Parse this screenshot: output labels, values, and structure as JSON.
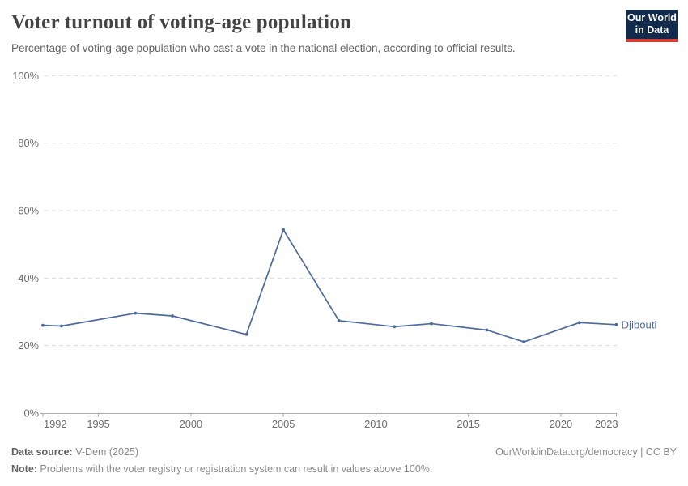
{
  "header": {
    "title": "Voter turnout of voting-age population",
    "subtitle": "Percentage of voting-age population who cast a vote in the national election, according to official results.",
    "logo": {
      "line1": "Our World",
      "line2": "in Data",
      "bg_color": "#122b4d",
      "stripe_color": "#d93d33"
    }
  },
  "chart_data": {
    "type": "line",
    "title": "Voter turnout of voting-age population",
    "xlabel": "",
    "ylabel": "",
    "xlim": [
      1992,
      2023
    ],
    "ylim": [
      0,
      100
    ],
    "x_ticks": [
      1992,
      1995,
      2000,
      2005,
      2010,
      2015,
      2020,
      2023
    ],
    "y_ticks": [
      0,
      20,
      40,
      60,
      80,
      100
    ],
    "y_tick_format": "{v}%",
    "grid": "horizontal-dashed",
    "legend_position": "line-end-label",
    "series": [
      {
        "name": "Djibouti",
        "color": "#4C6A9C",
        "x": [
          1992,
          1993,
          1997,
          1999,
          2003,
          2005,
          2008,
          2011,
          2013,
          2016,
          2018,
          2021,
          2023
        ],
        "values": [
          26.0,
          25.8,
          29.6,
          28.8,
          23.3,
          54.3,
          27.4,
          25.6,
          26.5,
          24.6,
          21.1,
          26.8,
          26.2
        ]
      }
    ]
  },
  "footer": {
    "data_source_label": "Data source:",
    "data_source_value": " V-Dem (2025)",
    "url_text": "OurWorldinData.org/democracy | CC BY",
    "note_label": "Note:",
    "note_value": " Problems with the voter registry or registration system can result in values above 100%."
  }
}
